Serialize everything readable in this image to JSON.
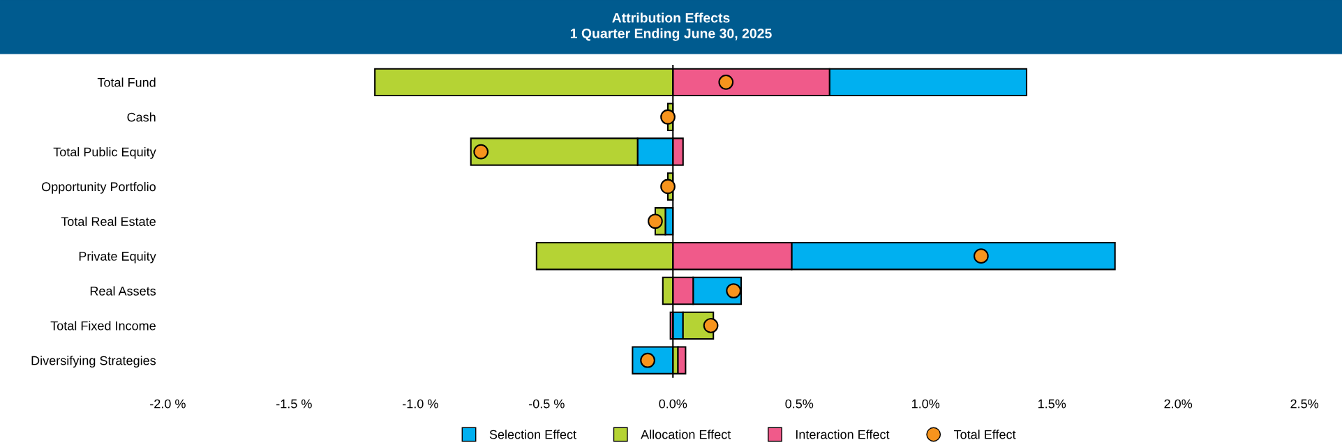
{
  "chart_data": {
    "type": "bar",
    "orientation": "horizontal",
    "title": "Attribution Effects\n1 Quarter Ending June 30, 2025",
    "categories": [
      "Total Fund",
      "Cash",
      "Total Public Equity",
      "Opportunity Portfolio",
      "Total Real Estate",
      "Private Equity",
      "Real Assets",
      "Total Fixed Income",
      "Diversifying Strategies"
    ],
    "series": [
      {
        "name": "Selection Effect",
        "color": "#00b0f0",
        "base": [
          0.62,
          null,
          0,
          null,
          0,
          0.47,
          0.08,
          0,
          0
        ],
        "values": [
          0.78,
          null,
          -0.14,
          null,
          -0.03,
          1.28,
          0.19,
          0.04,
          -0.16
        ]
      },
      {
        "name": "Allocation Effect",
        "color": "#b5d334",
        "base": [
          0,
          0,
          -0.14,
          0,
          -0.03,
          0,
          0,
          0.04,
          0
        ],
        "values": [
          -1.18,
          -0.02,
          -0.66,
          -0.02,
          -0.04,
          -0.54,
          -0.04,
          0.12,
          0.02
        ]
      },
      {
        "name": "Interaction Effect",
        "color": "#f05a8a",
        "base": [
          0,
          null,
          0,
          null,
          null,
          0,
          0,
          0,
          0.02
        ],
        "values": [
          0.62,
          null,
          0.04,
          null,
          null,
          0.47,
          0.08,
          -0.01,
          0.03
        ]
      },
      {
        "name": "Total Effect",
        "type": "scatter",
        "marker": "circle",
        "color": "#f7941d",
        "values": [
          0.21,
          -0.02,
          -0.76,
          -0.02,
          -0.07,
          1.22,
          0.24,
          0.15,
          -0.1
        ]
      }
    ],
    "xlim": [
      -2.0,
      2.5
    ],
    "xticks": [
      {
        "value": -2.0,
        "label": "-2.0 %"
      },
      {
        "value": -1.5,
        "label": "-1.5 %"
      },
      {
        "value": -1.0,
        "label": "-1.0 %"
      },
      {
        "value": -0.5,
        "label": "-0.5 %"
      },
      {
        "value": 0.0,
        "label": "0.0%"
      },
      {
        "value": 0.5,
        "label": "0.5%"
      },
      {
        "value": 1.0,
        "label": "1.0%"
      },
      {
        "value": 1.5,
        "label": "1.5%"
      },
      {
        "value": 2.0,
        "label": "2.0%"
      },
      {
        "value": 2.5,
        "label": "2.5%"
      }
    ],
    "ref_lines": [
      {
        "axis": "x",
        "value": 0,
        "color": "#000000",
        "line_style": "solid"
      }
    ],
    "grid": false,
    "legend": "bottom"
  }
}
